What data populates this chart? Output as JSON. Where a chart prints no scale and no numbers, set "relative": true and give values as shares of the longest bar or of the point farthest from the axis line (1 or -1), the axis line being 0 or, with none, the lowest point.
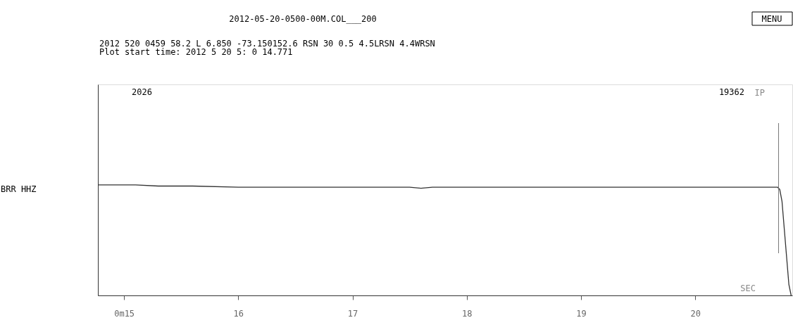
{
  "chart_data": {
    "type": "line",
    "title": "2012-05-20-0500-00M.COL___200",
    "subtitle": [
      "2012  520 0459 58.2 L    6.850 -73.150152.6  RSN 30 0.5 4.5LRSN 4.4WRSN",
      "Plot start time: 2012   5 20    5: 0  14.771"
    ],
    "xlabel": "SEC",
    "relative": true,
    "annotations": [
      "2026",
      "19362",
      "MENU",
      "BRR   HHZ"
    ],
    "x": [
      14.771,
      15.1,
      15.3,
      15.6,
      16.0,
      16.5,
      17.0,
      17.5,
      17.6,
      17.7,
      18.0,
      18.5,
      19.0,
      19.5,
      20.0,
      20.5,
      20.72,
      20.74,
      20.76,
      20.78,
      20.8,
      20.82,
      20.84
    ],
    "series": [
      {
        "color": "#333333",
        "values": [
          1,
          1,
          0.99,
          0.99,
          0.98,
          0.98,
          0.98,
          0.98,
          0.97,
          0.98,
          0.98,
          0.98,
          0.98,
          0.98,
          0.98,
          0.98,
          0.98,
          0.96,
          0.85,
          0.6,
          0.35,
          0.1,
          0
        ]
      }
    ],
    "xlim": [
      14.771,
      20.85
    ],
    "xticks": [
      {
        "value": 15,
        "label": "0m15"
      },
      16,
      17,
      18,
      19,
      20
    ],
    "ref_lines": [
      {
        "axis": "x",
        "value": 20.73,
        "label": "IP",
        "color": "#777777"
      }
    ],
    "grid": false,
    "tick_labels": "x",
    "marker": "none",
    "line_style": "solid"
  }
}
